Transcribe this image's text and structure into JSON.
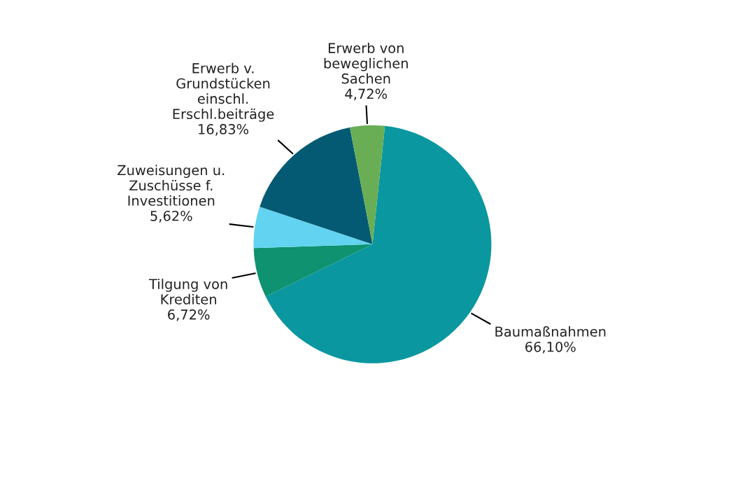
{
  "chart_data": {
    "type": "pie",
    "categories": [
      "Baumaßnahmen",
      "Tilgung von\nKrediten",
      "Zuweisungen u.\nZuschüsse f.\nInvestitionen",
      "Erwerb v.\nGrundstücken\neinschl.\nErschl.beiträge",
      "Erwerb von\nbeweglichen\nSachen"
    ],
    "values": [
      66.1,
      6.72,
      5.62,
      16.83,
      4.72
    ],
    "value_labels": [
      "66,10%",
      "6,72%",
      "5,62%",
      "16,83%",
      "4,72%"
    ],
    "colors": [
      "#0a979f",
      "#0e9270",
      "#62d3f0",
      "#045a73",
      "#69ad55"
    ],
    "legend": false
  }
}
